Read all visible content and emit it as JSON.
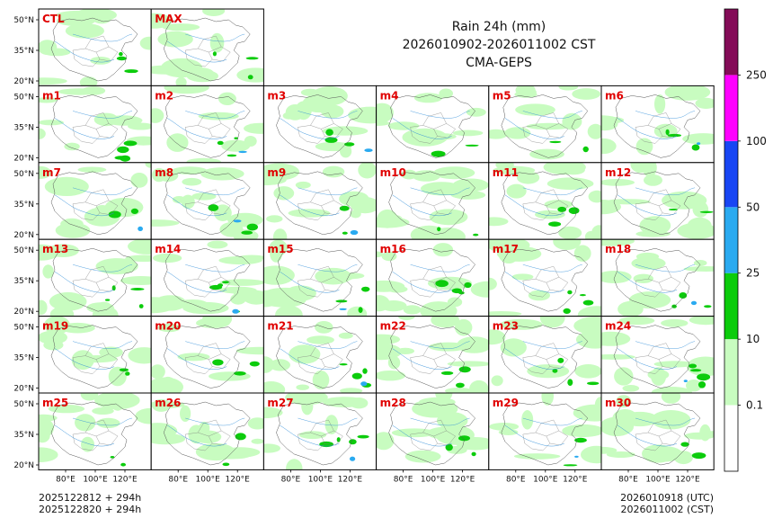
{
  "chart_data": {
    "type": "heatmap",
    "title_lines": [
      "Rain 24h (mm)",
      "2026010902-2026011002 CST",
      "CMA-GEPS"
    ],
    "panels": [
      [
        "CTL",
        "MAX"
      ],
      [
        "m1",
        "m2",
        "m3",
        "m4",
        "m5",
        "m6"
      ],
      [
        "m7",
        "m8",
        "m9",
        "m10",
        "m11",
        "m12"
      ],
      [
        "m13",
        "m14",
        "m15",
        "m16",
        "m17",
        "m18"
      ],
      [
        "m19",
        "m20",
        "m21",
        "m22",
        "m23",
        "m24"
      ],
      [
        "m25",
        "m26",
        "m27",
        "m28",
        "m29",
        "m30"
      ]
    ],
    "lat_ticks": [
      "50°N",
      "35°N",
      "20°N"
    ],
    "lon_ticks": [
      "80°E",
      "100°E",
      "120°E"
    ],
    "colorbar": {
      "levels": [
        0.1,
        10,
        25,
        50,
        100,
        250
      ],
      "tick_labels": [
        "0.1",
        "10",
        "25",
        "50",
        "100",
        "250"
      ],
      "colors": [
        "#ffffff",
        "#c8fcc0",
        "#0ccc0c",
        "#2aaaf0",
        "#1846f4",
        "#ff00ff",
        "#840c58"
      ]
    },
    "panel_label_color": "#e00000"
  },
  "footer": {
    "init_line_1": "2025122812 + 294h",
    "init_line_2": "2025122820 + 294h",
    "valid_utc": "2026010918 (UTC)",
    "valid_cst": "2026011002 (CST)"
  }
}
